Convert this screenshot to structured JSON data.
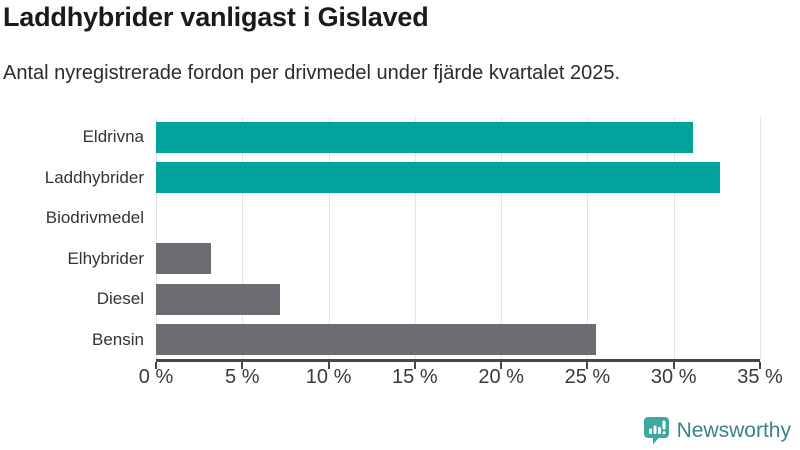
{
  "header": {
    "title": "Laddhybrider vanligast i Gislaved",
    "subtitle": "Antal nyregistrerade fordon per drivmedel under fjärde kvartalet 2025."
  },
  "chart_data": {
    "type": "bar",
    "orientation": "horizontal",
    "title": "Laddhybrider vanligast i Gislaved",
    "subtitle": "Antal nyregistrerade fordon per drivmedel under fjärde kvartalet 2025.",
    "categories": [
      "Eldrivna",
      "Laddhybrider",
      "Biodrivmedel",
      "Elhybrider",
      "Diesel",
      "Bensin"
    ],
    "values": [
      31.1,
      32.7,
      0,
      3.2,
      7.2,
      25.5
    ],
    "unit": "%",
    "xlim": [
      0,
      35
    ],
    "x_tick_values": [
      0,
      5,
      10,
      15,
      20,
      25,
      30,
      35
    ],
    "x_ticks": [
      "0 %",
      "5 %",
      "10 %",
      "15 %",
      "20 %",
      "25 %",
      "30 %",
      "35 %"
    ],
    "grid": true,
    "bar_colors": [
      "#00a29b",
      "#00a29b",
      "#6d6c72",
      "#6d6c72",
      "#6d6c72",
      "#6d6c72"
    ],
    "highlight_color": "#00a29b",
    "default_color": "#6d6c72",
    "axis_color": "#47474a",
    "grid_color": "#e4e4e4"
  },
  "footer": {
    "brand": "Newsworthy",
    "brand_text_color": "#3a818a",
    "brand_icon_color": "#3ea8a3"
  }
}
